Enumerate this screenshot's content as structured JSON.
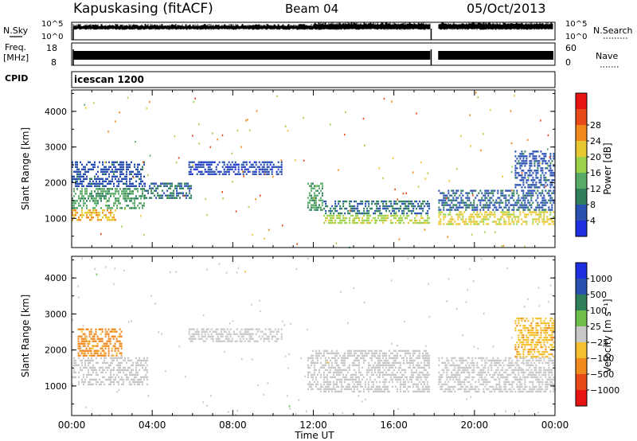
{
  "header": {
    "radar": "Kapuskasing (fitACF)",
    "beam": "Beam 04",
    "date": "05/Oct/2013"
  },
  "summary": {
    "nsky_label": "N.Sky",
    "nsearch_label": "N.Search",
    "nsky_ticks": [
      "10^5",
      "10^0"
    ],
    "nsearch_ticks": [
      "10^5",
      "10^0"
    ],
    "freq_label_1": "Freq.",
    "freq_label_2": "[MHz]",
    "freq_ticks": [
      "18",
      "8"
    ],
    "nave_label": "Nave",
    "nave_ticks": [
      "60",
      "0"
    ],
    "cpid_label": "CPID",
    "cpid_value": "icescan 1200"
  },
  "axes": {
    "ylabel": "Slant Range [km]",
    "xlabel": "Time UT",
    "yticks": [
      "1000",
      "2000",
      "3000",
      "4000"
    ],
    "xticks": [
      "00:00",
      "04:00",
      "08:00",
      "12:00",
      "16:00",
      "20:00",
      "00:00"
    ]
  },
  "colors": {
    "power": [
      "#1e2fe0",
      "#2a50b0",
      "#2e7f5a",
      "#58aa66",
      "#9cd24a",
      "#e8c832",
      "#f08a1e",
      "#e84a1a",
      "#e81414"
    ],
    "velocity": [
      "#1e2fe0",
      "#2a50b0",
      "#2e7f5a",
      "#6fbe4a",
      "#c8c8c8",
      "#f5c030",
      "#f08a1e",
      "#e84a1a",
      "#e81414"
    ]
  },
  "chart_data": [
    {
      "type": "heatmap",
      "title": "",
      "xlabel": "Time UT",
      "ylabel": "Slant Range [km]",
      "xlim": [
        0,
        24
      ],
      "ylim": [
        180,
        4600
      ],
      "colorbar": {
        "label": "Power [dB]",
        "ticks": [
          "4",
          "8",
          "12",
          "16",
          "20",
          "24",
          "28"
        ],
        "range": [
          0,
          30
        ]
      },
      "regions": [
        {
          "t0": 0.0,
          "t1": 2.2,
          "r0": 900,
          "r1": 1250,
          "value": 20
        },
        {
          "t0": 0.0,
          "t1": 3.6,
          "r0": 1250,
          "r1": 1850,
          "value": 10
        },
        {
          "t0": 0.0,
          "t1": 3.6,
          "r0": 1850,
          "r1": 2600,
          "value": 4
        },
        {
          "t0": 3.6,
          "t1": 6.0,
          "r0": 1500,
          "r1": 2000,
          "value": 6
        },
        {
          "t0": 5.8,
          "t1": 10.5,
          "r0": 2200,
          "r1": 2600,
          "value": 3
        },
        {
          "t0": 11.7,
          "t1": 12.5,
          "r0": 1200,
          "r1": 2000,
          "value": 10
        },
        {
          "t0": 12.5,
          "t1": 17.8,
          "r0": 800,
          "r1": 1100,
          "value": 16
        },
        {
          "t0": 12.5,
          "t1": 17.8,
          "r0": 1100,
          "r1": 1500,
          "value": 6
        },
        {
          "t0": 18.2,
          "t1": 24.0,
          "r0": 800,
          "r1": 1200,
          "value": 18
        },
        {
          "t0": 18.2,
          "t1": 24.0,
          "r0": 1200,
          "r1": 1800,
          "value": 5
        },
        {
          "t0": 22.0,
          "t1": 24.0,
          "r0": 1800,
          "r1": 2900,
          "value": 4
        }
      ]
    },
    {
      "type": "heatmap",
      "title": "",
      "xlabel": "Time UT",
      "ylabel": "Slant Range [km]",
      "xlim": [
        0,
        24
      ],
      "ylim": [
        180,
        4600
      ],
      "colorbar": {
        "label": "Velocity [m s⁻¹]",
        "ticks": [
          "1000",
          "500",
          "100",
          "25",
          "−25",
          "−100",
          "−500",
          "−1000"
        ],
        "range": [
          -1000,
          1000
        ]
      },
      "regions": [
        {
          "t0": 0.0,
          "t1": 3.8,
          "r0": 1000,
          "r1": 1800,
          "value": 0
        },
        {
          "t0": 0.3,
          "t1": 2.5,
          "r0": 1800,
          "r1": 2600,
          "value": -200
        },
        {
          "t0": 5.8,
          "t1": 10.5,
          "r0": 2200,
          "r1": 2600,
          "value": 0
        },
        {
          "t0": 11.7,
          "t1": 17.8,
          "r0": 800,
          "r1": 2000,
          "value": 0
        },
        {
          "t0": 18.2,
          "t1": 24.0,
          "r0": 800,
          "r1": 1800,
          "value": 0
        },
        {
          "t0": 22.0,
          "t1": 24.0,
          "r0": 1800,
          "r1": 2900,
          "value": -100
        }
      ]
    }
  ]
}
